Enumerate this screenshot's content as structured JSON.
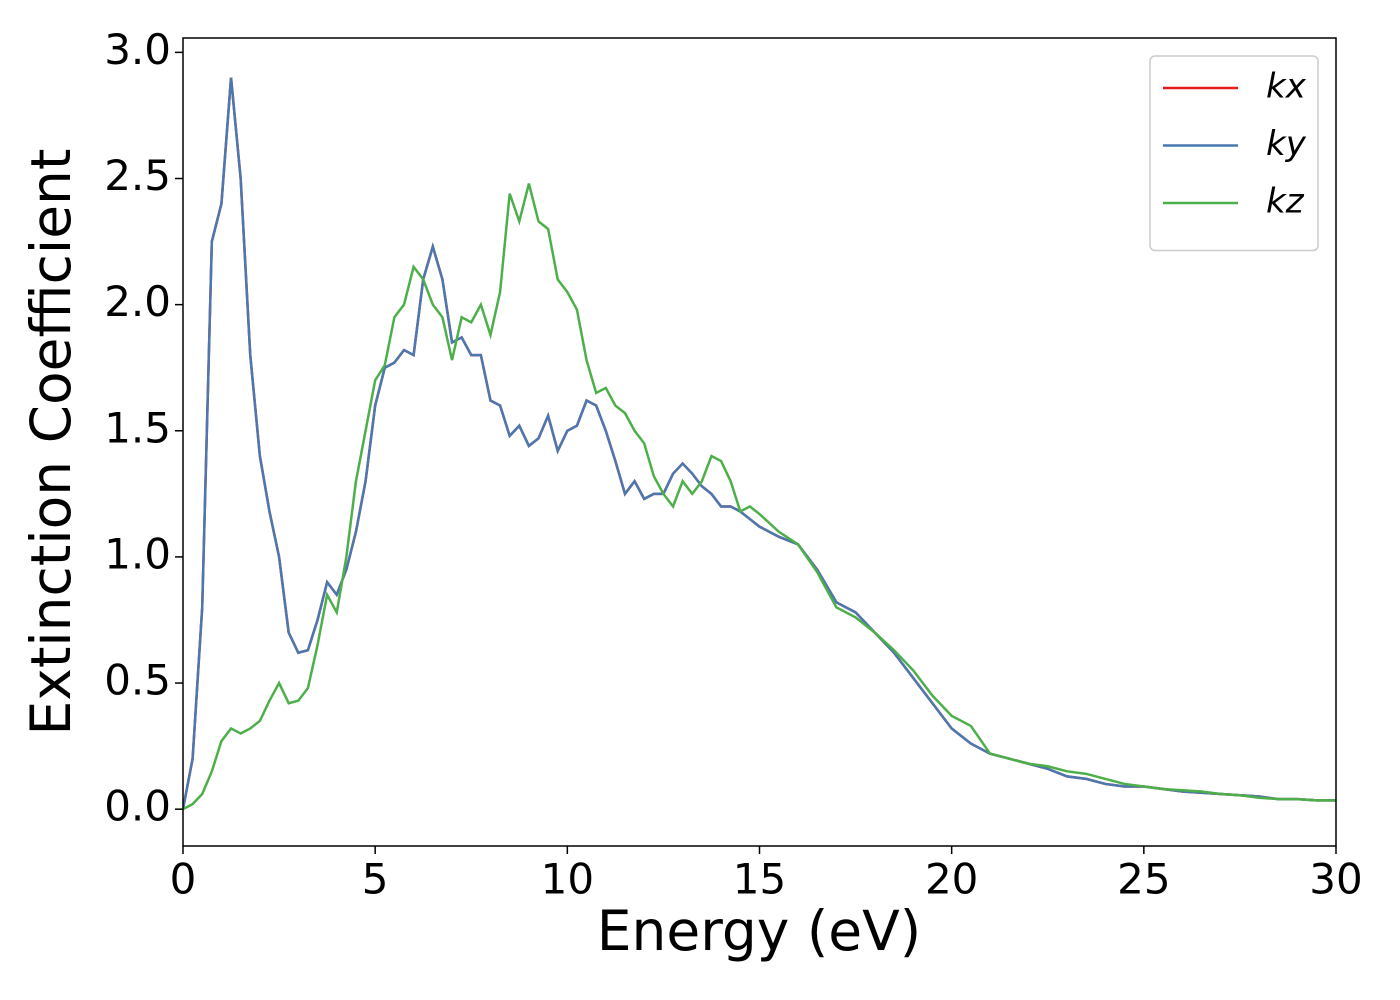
{
  "chart_data": {
    "type": "line",
    "xlabel": "Energy (eV)",
    "ylabel": "Extinction Coefficient",
    "xlim": [
      0,
      30
    ],
    "ylim": [
      -0.146,
      3.057
    ],
    "xticks": [
      0,
      5,
      10,
      15,
      20,
      25,
      30
    ],
    "yticks": [
      {
        "value": 0,
        "label": "0.0"
      },
      {
        "value": 0.5,
        "label": "0.5"
      },
      {
        "value": 1,
        "label": "1.0"
      },
      {
        "value": 1.5,
        "label": "1.5"
      },
      {
        "value": 2,
        "label": "2.0"
      },
      {
        "value": 2.5,
        "label": "2.5"
      },
      {
        "value": 3,
        "label": "3.0"
      }
    ],
    "legend": "upper right",
    "x": [
      0,
      0.25,
      0.5,
      0.75,
      1,
      1.25,
      1.5,
      1.75,
      2,
      2.25,
      2.5,
      2.75,
      3,
      3.25,
      3.5,
      3.75,
      4,
      4.25,
      4.5,
      4.75,
      5,
      5.25,
      5.5,
      5.75,
      6,
      6.25,
      6.5,
      6.75,
      7,
      7.25,
      7.5,
      7.75,
      8,
      8.25,
      8.5,
      8.75,
      9,
      9.25,
      9.5,
      9.75,
      10,
      10.25,
      10.5,
      10.75,
      11,
      11.25,
      11.5,
      11.75,
      12,
      12.25,
      12.5,
      12.75,
      13,
      13.25,
      13.5,
      13.75,
      14,
      14.25,
      14.5,
      14.75,
      15,
      15.5,
      16,
      16.5,
      17,
      17.5,
      18,
      18.5,
      19,
      19.5,
      20,
      20.5,
      21,
      21.5,
      22,
      22.5,
      23,
      23.5,
      24,
      24.5,
      25,
      25.5,
      26,
      26.5,
      27,
      27.5,
      28,
      28.5,
      29,
      29.5,
      30
    ],
    "series": [
      {
        "name": "kx",
        "color": "#e41a1c",
        "values": [
          0,
          0.2,
          0.8,
          2.25,
          2.4,
          2.9,
          2.5,
          1.8,
          1.4,
          1.18,
          1.0,
          0.7,
          0.62,
          0.63,
          0.75,
          0.9,
          0.85,
          0.95,
          1.1,
          1.3,
          1.6,
          1.75,
          1.77,
          1.82,
          1.8,
          2.1,
          2.23,
          2.1,
          1.85,
          1.87,
          1.8,
          1.8,
          1.62,
          1.6,
          1.48,
          1.52,
          1.44,
          1.47,
          1.56,
          1.42,
          1.5,
          1.52,
          1.62,
          1.6,
          1.5,
          1.38,
          1.25,
          1.3,
          1.23,
          1.25,
          1.25,
          1.33,
          1.37,
          1.33,
          1.28,
          1.25,
          1.2,
          1.2,
          1.18,
          1.15,
          1.12,
          1.08,
          1.05,
          0.95,
          0.82,
          0.78,
          0.7,
          0.62,
          0.52,
          0.42,
          0.32,
          0.26,
          0.22,
          0.2,
          0.18,
          0.16,
          0.13,
          0.12,
          0.1,
          0.09,
          0.09,
          0.08,
          0.07,
          0.065,
          0.06,
          0.055,
          0.05,
          0.04,
          0.04,
          0.035,
          0.035
        ]
      },
      {
        "name": "ky",
        "color": "#4a78b0",
        "values": [
          0,
          0.2,
          0.8,
          2.25,
          2.4,
          2.9,
          2.5,
          1.8,
          1.4,
          1.18,
          1.0,
          0.7,
          0.62,
          0.63,
          0.75,
          0.9,
          0.85,
          0.95,
          1.1,
          1.3,
          1.6,
          1.75,
          1.77,
          1.82,
          1.8,
          2.1,
          2.23,
          2.1,
          1.85,
          1.87,
          1.8,
          1.8,
          1.62,
          1.6,
          1.48,
          1.52,
          1.44,
          1.47,
          1.56,
          1.42,
          1.5,
          1.52,
          1.62,
          1.6,
          1.5,
          1.38,
          1.25,
          1.3,
          1.23,
          1.25,
          1.25,
          1.33,
          1.37,
          1.33,
          1.28,
          1.25,
          1.2,
          1.2,
          1.18,
          1.15,
          1.12,
          1.08,
          1.05,
          0.95,
          0.82,
          0.78,
          0.7,
          0.62,
          0.52,
          0.42,
          0.32,
          0.26,
          0.22,
          0.2,
          0.18,
          0.16,
          0.13,
          0.12,
          0.1,
          0.09,
          0.09,
          0.08,
          0.07,
          0.065,
          0.06,
          0.055,
          0.05,
          0.04,
          0.04,
          0.035,
          0.035
        ]
      },
      {
        "name": "kz",
        "color": "#4daf4a",
        "values": [
          0,
          0.02,
          0.06,
          0.15,
          0.27,
          0.32,
          0.3,
          0.32,
          0.35,
          0.43,
          0.5,
          0.42,
          0.43,
          0.48,
          0.65,
          0.85,
          0.78,
          1.0,
          1.3,
          1.5,
          1.7,
          1.76,
          1.95,
          2.0,
          2.15,
          2.1,
          2.0,
          1.95,
          1.78,
          1.95,
          1.93,
          2.0,
          1.88,
          2.05,
          2.44,
          2.33,
          2.48,
          2.33,
          2.3,
          2.1,
          2.05,
          1.98,
          1.78,
          1.65,
          1.67,
          1.6,
          1.57,
          1.5,
          1.45,
          1.32,
          1.25,
          1.2,
          1.3,
          1.25,
          1.3,
          1.4,
          1.38,
          1.3,
          1.18,
          1.2,
          1.17,
          1.1,
          1.05,
          0.94,
          0.8,
          0.76,
          0.7,
          0.63,
          0.55,
          0.45,
          0.37,
          0.33,
          0.22,
          0.2,
          0.18,
          0.17,
          0.15,
          0.14,
          0.12,
          0.1,
          0.09,
          0.08,
          0.075,
          0.07,
          0.06,
          0.055,
          0.045,
          0.04,
          0.04,
          0.035,
          0.035
        ]
      }
    ]
  }
}
